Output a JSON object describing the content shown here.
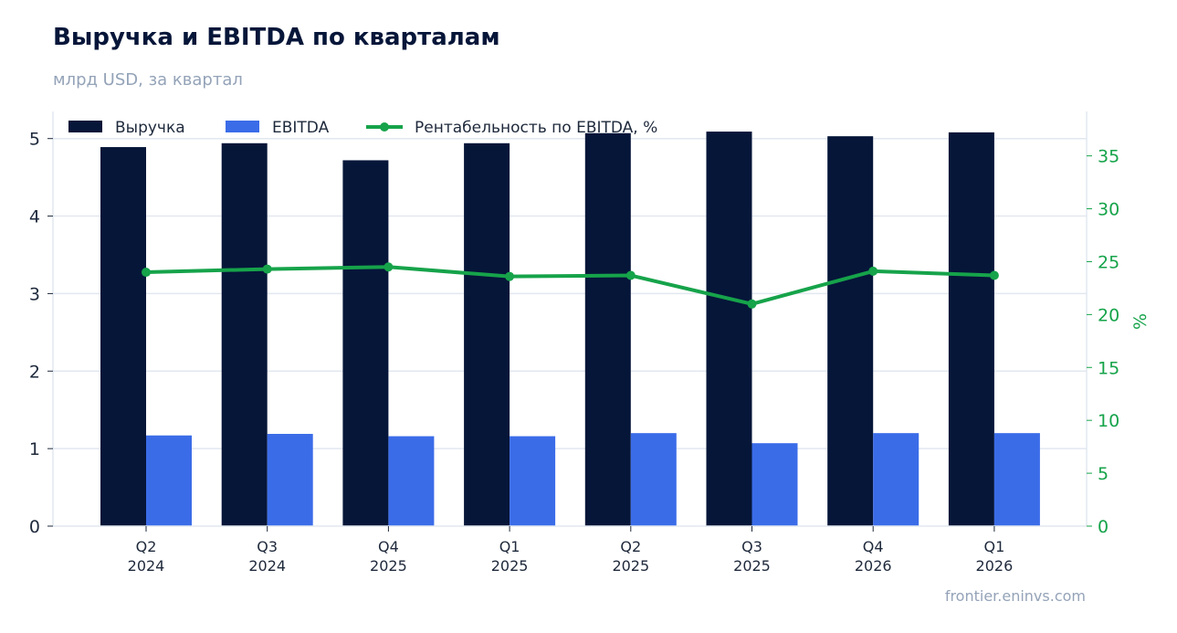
{
  "title": "Выручка и EBITDA по кварталам",
  "subtitle": "млрд USD, за квартал",
  "source": "frontier.eninvs.com",
  "colors": {
    "revenue": "#061639",
    "ebitda": "#3b6ce8",
    "margin": "#16a34a",
    "grid": "#e2e8f0",
    "axis_text": "#1e293b"
  },
  "chart_data": {
    "type": "bar",
    "categories": [
      [
        "Q2",
        "2024"
      ],
      [
        "Q3",
        "2024"
      ],
      [
        "Q4",
        "2025"
      ],
      [
        "Q1",
        "2025"
      ],
      [
        "Q2",
        "2025"
      ],
      [
        "Q3",
        "2025"
      ],
      [
        "Q4",
        "2026"
      ],
      [
        "Q1",
        "2026"
      ]
    ],
    "series": [
      {
        "name": "Выручка",
        "type": "bar",
        "axis": "left",
        "values": [
          4.89,
          4.94,
          4.72,
          4.94,
          5.07,
          5.09,
          5.03,
          5.08
        ]
      },
      {
        "name": "EBITDA",
        "type": "bar",
        "axis": "left",
        "values": [
          1.17,
          1.19,
          1.16,
          1.16,
          1.2,
          1.07,
          1.2,
          1.2
        ]
      },
      {
        "name": "Рентабельность по EBITDA, %",
        "type": "line",
        "axis": "right",
        "values": [
          24.0,
          24.3,
          24.5,
          23.6,
          23.7,
          21.0,
          24.1,
          23.7
        ]
      }
    ],
    "y_left": {
      "ylim": [
        0,
        5.35
      ],
      "ticks": [
        0,
        1,
        2,
        3,
        4,
        5
      ],
      "label": ""
    },
    "y_right": {
      "ylim": [
        0,
        39.2
      ],
      "ticks": [
        0,
        5,
        10,
        15,
        20,
        25,
        30,
        35
      ],
      "label": "%"
    },
    "grid": true,
    "legend": "top-left"
  }
}
